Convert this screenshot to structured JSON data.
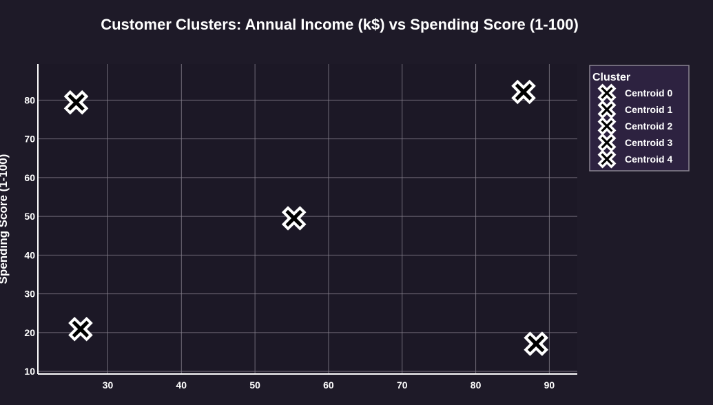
{
  "chart_data": {
    "type": "scatter",
    "title": "Customer Clusters: Annual Income (k$) vs Spending Score (1-100)",
    "xlabel": "",
    "ylabel": "Spending Score (1-100)",
    "xlim": [
      20.5,
      93.8
    ],
    "ylim": [
      9.3,
      89.3
    ],
    "x_ticks": [
      30,
      40,
      50,
      60,
      70,
      80,
      90
    ],
    "y_ticks": [
      10,
      20,
      30,
      40,
      50,
      60,
      70,
      80
    ],
    "grid": true,
    "legend": {
      "title": "Cluster",
      "placement": "right"
    },
    "series": [
      {
        "name": "Centroid 0",
        "x": [
          25.7
        ],
        "y": [
          79.4
        ]
      },
      {
        "name": "Centroid 1",
        "x": [
          55.3
        ],
        "y": [
          49.5
        ]
      },
      {
        "name": "Centroid 2",
        "x": [
          86.5
        ],
        "y": [
          82.1
        ]
      },
      {
        "name": "Centroid 3",
        "x": [
          26.3
        ],
        "y": [
          20.9
        ]
      },
      {
        "name": "Centroid 4",
        "x": [
          88.2
        ],
        "y": [
          17.1
        ]
      }
    ],
    "colors": {
      "background": "#1e1a28",
      "plot_background": "#1c1826",
      "legend_background": "#2d2240",
      "grid": "#8a8591",
      "marker_fill": "#000000",
      "marker_outline": "#ffffff"
    }
  }
}
